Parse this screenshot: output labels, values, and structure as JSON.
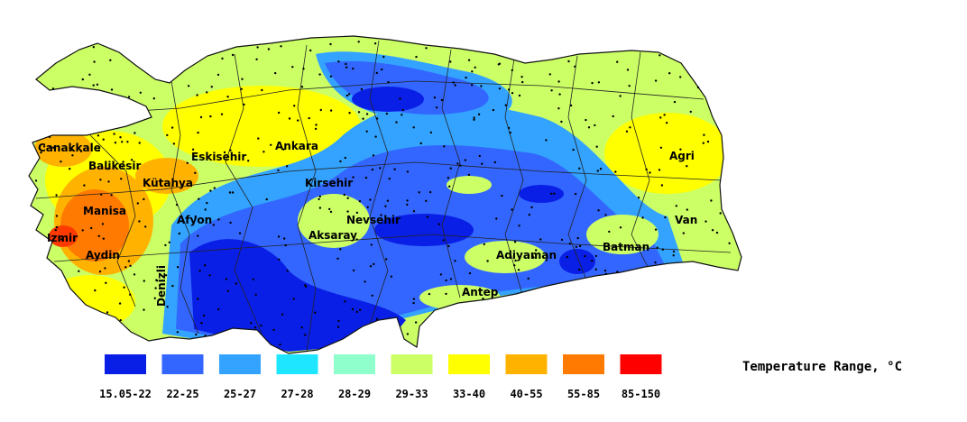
{
  "legend": {
    "title": "Temperature Range, °C",
    "classes": [
      {
        "label": "15.05-22",
        "color": "#0a1fe6"
      },
      {
        "label": "22-25",
        "color": "#3366ff"
      },
      {
        "label": "25-27",
        "color": "#33a3ff"
      },
      {
        "label": "27-28",
        "color": "#1fe6ff"
      },
      {
        "label": "28-29",
        "color": "#8fffcc"
      },
      {
        "label": "29-33",
        "color": "#ccff66"
      },
      {
        "label": "33-40",
        "color": "#ffff00"
      },
      {
        "label": "40-55",
        "color": "#ffb300"
      },
      {
        "label": "55-85",
        "color": "#ff7a00"
      },
      {
        "label": "85-150",
        "color": "#ff0000"
      }
    ]
  },
  "cities": [
    {
      "name": "Canakkale",
      "class": "40-55"
    },
    {
      "name": "Balikesir",
      "class": "29-33"
    },
    {
      "name": "Eskisehir",
      "class": "29-33"
    },
    {
      "name": "Ankara",
      "class": "33-40"
    },
    {
      "name": "Kütahya",
      "class": "40-55"
    },
    {
      "name": "Kirsehir",
      "class": "29-33"
    },
    {
      "name": "Manisa",
      "class": "55-85"
    },
    {
      "name": "Afyon",
      "class": "22-25"
    },
    {
      "name": "Nevsehir",
      "class": "29-33"
    },
    {
      "name": "Izmir",
      "class": "85-150"
    },
    {
      "name": "Aksaray",
      "class": "29-33"
    },
    {
      "name": "Aydin",
      "class": "55-85"
    },
    {
      "name": "Denizli",
      "class": "40-55"
    },
    {
      "name": "Adiyaman",
      "class": "29-33"
    },
    {
      "name": "Batman",
      "class": "29-33"
    },
    {
      "name": "Antep",
      "class": "29-33"
    },
    {
      "name": "Agri",
      "class": "33-40"
    },
    {
      "name": "Van",
      "class": "33-40"
    }
  ],
  "colors": {
    "background": "#ffffff",
    "borders": "#222222",
    "station_dots": "#000000"
  }
}
